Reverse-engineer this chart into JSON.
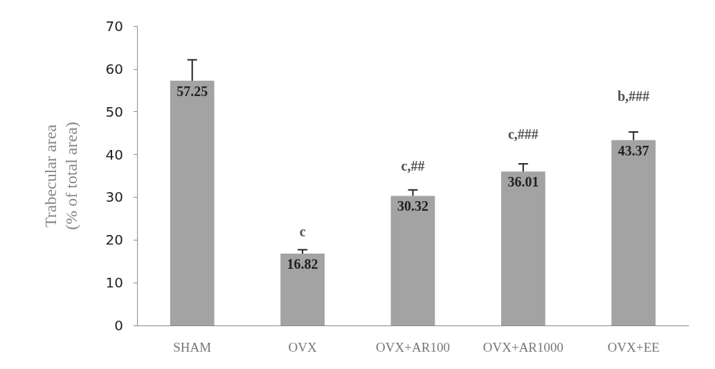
{
  "chart_data": {
    "type": "bar",
    "ylabel": "Trabecular area\n(% of total area)",
    "categories": [
      "SHAM",
      "OVX",
      "OVX+AR100",
      "OVX+AR1000",
      "OVX+EE"
    ],
    "values": [
      57.25,
      16.82,
      30.32,
      36.01,
      43.37
    ],
    "errors": [
      4.9,
      0.9,
      1.4,
      1.8,
      1.9
    ],
    "color": "#a3a3a3",
    "data_labels": true,
    "grid": false,
    "ylim": [
      0,
      70
    ],
    "yticks": [
      0,
      10,
      20,
      30,
      40,
      50,
      60,
      70
    ],
    "annotations": [
      "c",
      "c,##",
      "c,###",
      "b,###"
    ]
  }
}
